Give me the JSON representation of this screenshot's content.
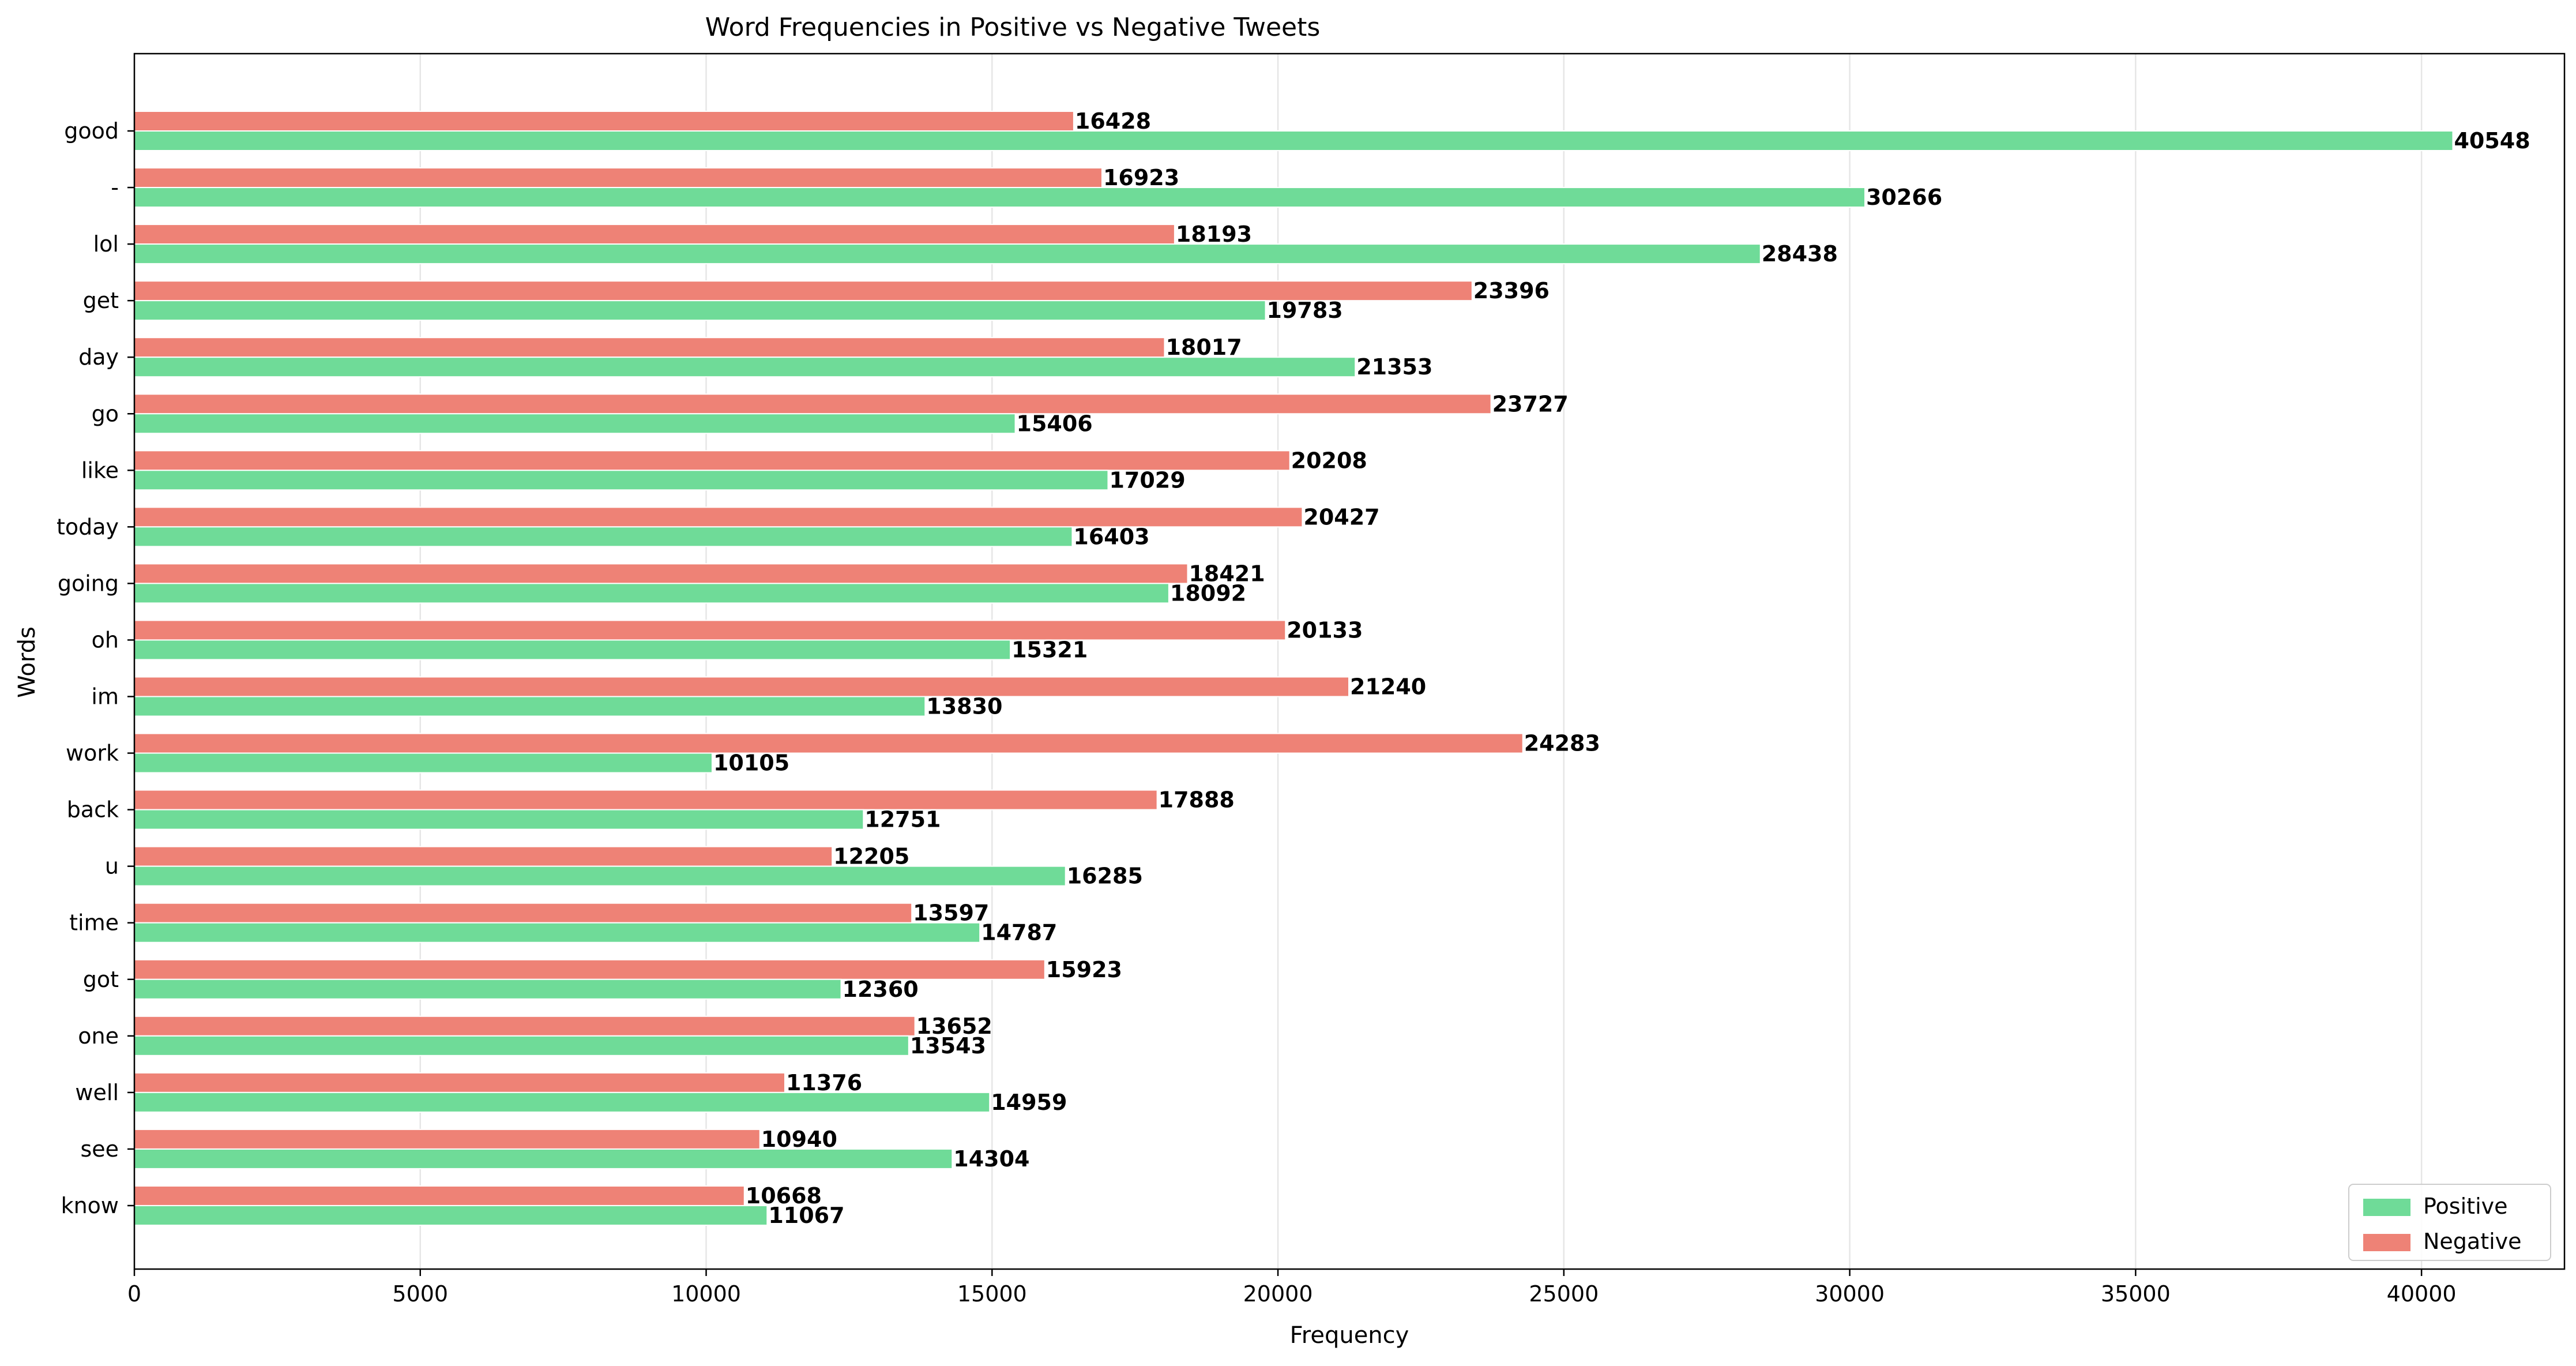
{
  "chart_data": {
    "type": "bar",
    "orientation": "horizontal",
    "title": "Word Frequencies in Positive vs Negative Tweets",
    "xlabel": "Frequency",
    "ylabel": "Words",
    "xlim": [
      0,
      42500
    ],
    "xticks": [
      0,
      5000,
      10000,
      15000,
      20000,
      25000,
      30000,
      35000,
      40000
    ],
    "grid": "vertical",
    "legend_position": "bottom-right",
    "categories": [
      "good",
      "-",
      "lol",
      "get",
      "day",
      "go",
      "like",
      "today",
      "going",
      "oh",
      "im",
      "work",
      "back",
      "u",
      "time",
      "got",
      "one",
      "well",
      "see",
      "know"
    ],
    "series": [
      {
        "name": "Positive",
        "color": "#6fdb98",
        "values": [
          40548,
          30266,
          28438,
          19783,
          21353,
          15406,
          17029,
          16403,
          18092,
          15321,
          13830,
          10105,
          12751,
          16285,
          14787,
          12360,
          13543,
          14959,
          14304,
          11067
        ]
      },
      {
        "name": "Negative",
        "color": "#ee8276",
        "values": [
          16428,
          16923,
          18193,
          23396,
          18017,
          23727,
          20208,
          20427,
          18421,
          20133,
          21240,
          24283,
          17888,
          12205,
          13597,
          15923,
          13652,
          11376,
          10940,
          10668
        ]
      }
    ]
  }
}
